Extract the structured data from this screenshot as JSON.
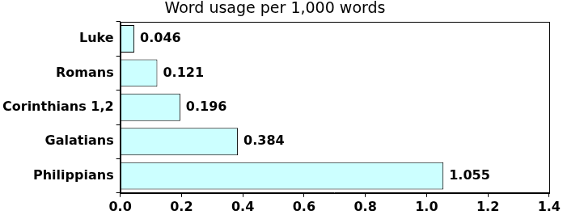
{
  "chart_data": {
    "type": "bar",
    "orientation": "horizontal",
    "title": "Word usage per 1,000 words",
    "categories": [
      "Luke",
      "Romans",
      "Corinthians 1,2",
      "Galatians",
      "Philippians"
    ],
    "values": [
      0.046,
      0.121,
      0.196,
      0.384,
      1.055
    ],
    "color": "#ccffff",
    "xlim": [
      0,
      1.4
    ],
    "xticks": [
      {
        "value": 0,
        "label": "0.0"
      },
      0.2,
      0.4,
      0.6,
      0.8,
      {
        "value": 1,
        "label": "1.0"
      },
      1.2,
      1.4
    ],
    "grid": false,
    "data_labels": true
  }
}
